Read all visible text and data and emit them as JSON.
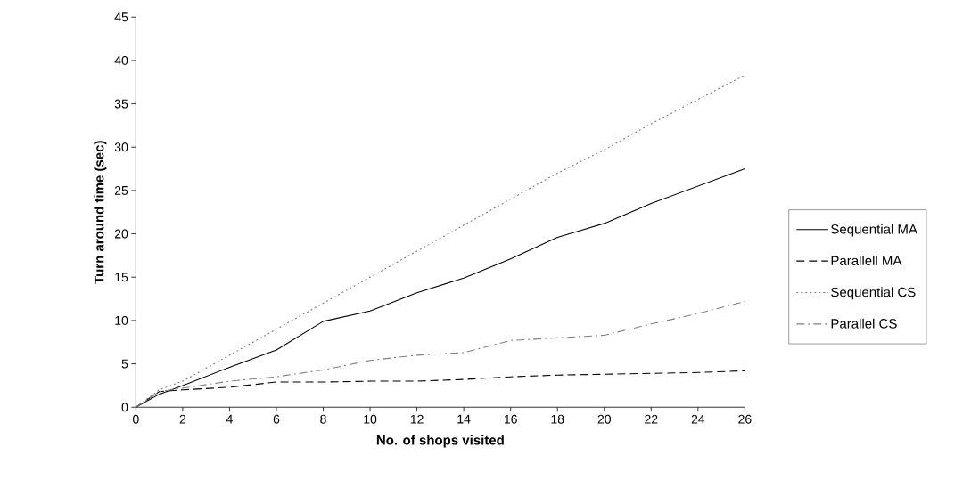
{
  "chart_data": {
    "type": "line",
    "xlabel": "No. of shops visited",
    "ylabel": "Turn around time (sec)",
    "x": [
      0,
      1,
      2,
      4,
      6,
      8,
      10,
      12,
      14,
      16,
      18,
      20,
      22,
      24,
      26
    ],
    "series": [
      {
        "name": "Sequential MA",
        "color": "#000000",
        "line_style": "solid",
        "values": [
          0,
          1.5,
          2.5,
          4.6,
          6.6,
          9.9,
          11.1,
          13.2,
          14.9,
          17.1,
          19.6,
          21.2,
          23.5,
          25.5,
          27.5
        ]
      },
      {
        "name": "Parallell MA",
        "color": "#000000",
        "line_style": "dashed",
        "values": [
          0,
          1.8,
          2.0,
          2.3,
          2.9,
          2.9,
          3.0,
          3.0,
          3.2,
          3.5,
          3.7,
          3.8,
          3.9,
          4.0,
          4.2
        ]
      },
      {
        "name": "Sequential CS",
        "color": "#808080",
        "line_style": "dotted",
        "values": [
          0,
          2.0,
          3.0,
          6.0,
          9.0,
          12.0,
          15.0,
          18.0,
          21.0,
          24.0,
          27.0,
          29.7,
          32.7,
          35.5,
          38.3
        ]
      },
      {
        "name": "Parallel CS",
        "color": "#808080",
        "line_style": "dashdot",
        "values": [
          0,
          1.8,
          2.2,
          3.0,
          3.5,
          4.3,
          5.4,
          6.0,
          6.3,
          7.7,
          8.0,
          8.3,
          9.6,
          10.8,
          12.2
        ]
      }
    ],
    "xlim": [
      0,
      26
    ],
    "xticks": [
      0,
      2,
      4,
      6,
      8,
      10,
      12,
      14,
      16,
      18,
      20,
      22,
      24,
      26
    ],
    "ylim": [
      0,
      45
    ],
    "yticks": [
      0,
      5,
      10,
      15,
      20,
      25,
      30,
      35,
      40,
      45
    ],
    "grid": false,
    "legend": "right"
  }
}
